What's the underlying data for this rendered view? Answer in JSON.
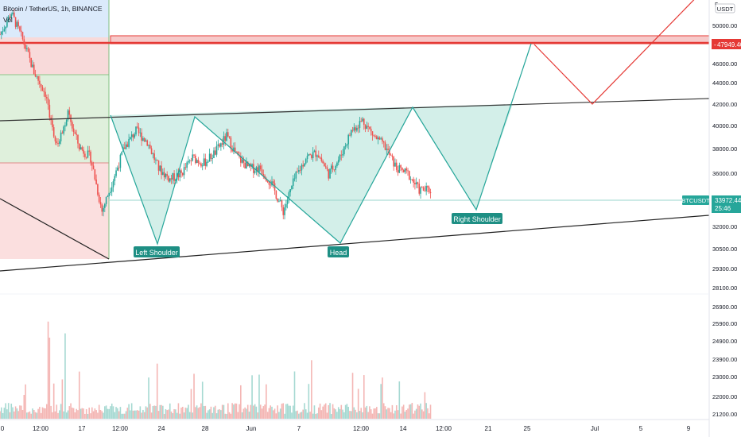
{
  "header": {
    "title": "Bitcoin / TetherUS, 1h, BINANCE",
    "volume_label": "Vol"
  },
  "price_axis": {
    "currency": "USDT",
    "top_clip": "5",
    "ticks": [
      "50000.00",
      "48000.00",
      "46000.00",
      "44000.00",
      "42000.00",
      "40000.00",
      "38000.00",
      "36000.00",
      "34000.00",
      "32000.00",
      "30500.00",
      "29300.00",
      "28100.00",
      "26900.00",
      "25900.00",
      "24900.00",
      "23900.00",
      "23000.00",
      "22000.00",
      "21200.00"
    ],
    "resistance_label": "47949.40",
    "symbol_badge": "BTCUSDT",
    "last_price": "33972.44",
    "countdown": "25:46",
    "colors": {
      "resistance": "#e53935",
      "badge": "#26a69a",
      "pattern": "#26a69a"
    }
  },
  "time_axis": {
    "ticks": [
      "0",
      "12:00",
      "17",
      "12:00",
      "24",
      "28",
      "Jun",
      "7",
      "12:00",
      "14",
      "12:00",
      "21",
      "25",
      "Jul",
      "5",
      "9"
    ]
  },
  "annotations": {
    "left_shoulder": "Left Shoulder",
    "head": "Head",
    "right_shoulder": "Right Shoulder"
  },
  "chart_data": {
    "type": "candlestick",
    "title": "Bitcoin / TetherUS, 1h, BINANCE",
    "ylim": [
      29000,
      51000
    ],
    "price_ticks": [
      32000,
      34000,
      36000,
      38000,
      40000,
      42000,
      44000,
      46000,
      48000,
      50000
    ],
    "resistance_level": 47949.4,
    "last_price": 33972.44,
    "neckline_points": [
      {
        "x": "May 19",
        "y": 41200
      },
      {
        "x": "Jul 12",
        "y": 42500
      }
    ],
    "support_points": [
      {
        "x": "May 16",
        "y": 29100
      },
      {
        "x": "Jul 12",
        "y": 33300
      }
    ],
    "pattern": {
      "name": "Head and Shoulders",
      "points": [
        {
          "label": "Left Shoulder",
          "x": "May 23",
          "y": 30800
        },
        {
          "label": "",
          "x": "May 26",
          "y": 41100
        },
        {
          "label": "Head",
          "x": "Jun 8",
          "y": 30800
        },
        {
          "label": "",
          "x": "Jun 15",
          "y": 41600
        },
        {
          "label": "Right Shoulder",
          "x": "Jun 21",
          "y": 33600
        },
        {
          "label": "",
          "x": "Jun 24",
          "y": 47900
        }
      ]
    },
    "projection_path": [
      {
        "x": "Jun 24",
        "y": 47900
      },
      {
        "x": "Jul 1",
        "y": 41900
      },
      {
        "x": "Jul 12",
        "y": 51000
      }
    ],
    "price_path": [
      {
        "x": "May 14",
        "y": 48500
      },
      {
        "x": "May 15",
        "y": 50500
      },
      {
        "x": "May 16",
        "y": 48000
      },
      {
        "x": "May 17",
        "y": 45000
      },
      {
        "x": "May 18",
        "y": 43000
      },
      {
        "x": "May 19",
        "y": 38000
      },
      {
        "x": "May 20",
        "y": 41000
      },
      {
        "x": "May 21",
        "y": 38000
      },
      {
        "x": "May 22",
        "y": 37000
      },
      {
        "x": "May 23",
        "y": 32000
      },
      {
        "x": "May 24",
        "y": 35000
      },
      {
        "x": "May 25",
        "y": 38000
      },
      {
        "x": "May 26",
        "y": 39500
      },
      {
        "x": "May 27",
        "y": 38500
      },
      {
        "x": "May 28",
        "y": 36000
      },
      {
        "x": "May 29",
        "y": 35000
      },
      {
        "x": "May 30",
        "y": 35500
      },
      {
        "x": "May 31",
        "y": 37000
      },
      {
        "x": "Jun 1",
        "y": 36500
      },
      {
        "x": "Jun 2",
        "y": 37500
      },
      {
        "x": "Jun 3",
        "y": 39000
      },
      {
        "x": "Jun 4",
        "y": 37000
      },
      {
        "x": "Jun 5",
        "y": 36000
      },
      {
        "x": "Jun 6",
        "y": 36000
      },
      {
        "x": "Jun 7",
        "y": 34500
      },
      {
        "x": "Jun 8",
        "y": 32000
      },
      {
        "x": "Jun 9",
        "y": 35000
      },
      {
        "x": "Jun 10",
        "y": 37000
      },
      {
        "x": "Jun 11",
        "y": 37500
      },
      {
        "x": "Jun 12",
        "y": 35500
      },
      {
        "x": "Jun 13",
        "y": 37000
      },
      {
        "x": "Jun 14",
        "y": 39500
      },
      {
        "x": "Jun 15",
        "y": 40500
      },
      {
        "x": "Jun 16",
        "y": 39000
      },
      {
        "x": "Jun 17",
        "y": 38000
      },
      {
        "x": "Jun 18",
        "y": 36000
      },
      {
        "x": "Jun 19",
        "y": 35500
      },
      {
        "x": "Jun 20",
        "y": 34000
      },
      {
        "x": "Jun 21",
        "y": 33972
      }
    ]
  }
}
